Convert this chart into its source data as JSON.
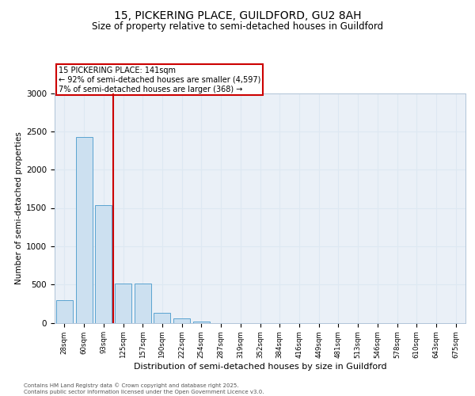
{
  "title1": "15, PICKERING PLACE, GUILDFORD, GU2 8AH",
  "title2": "Size of property relative to semi-detached houses in Guildford",
  "xlabel": "Distribution of semi-detached houses by size in Guildford",
  "ylabel": "Number of semi-detached properties",
  "categories": [
    "28sqm",
    "60sqm",
    "93sqm",
    "125sqm",
    "157sqm",
    "190sqm",
    "222sqm",
    "254sqm",
    "287sqm",
    "319sqm",
    "352sqm",
    "384sqm",
    "416sqm",
    "449sqm",
    "481sqm",
    "513sqm",
    "546sqm",
    "578sqm",
    "610sqm",
    "643sqm",
    "675sqm"
  ],
  "values": [
    300,
    2430,
    1540,
    510,
    510,
    130,
    55,
    20,
    0,
    0,
    0,
    0,
    0,
    0,
    0,
    0,
    0,
    0,
    0,
    0,
    0
  ],
  "bar_color": "#cce0f0",
  "bar_edge_color": "#5ba3d0",
  "grid_color": "#dde8f2",
  "background_color": "#eaf0f7",
  "vline_color": "#cc0000",
  "vline_pos": 2.5,
  "annotation_line1": "15 PICKERING PLACE: 141sqm",
  "annotation_line2": "← 92% of semi-detached houses are smaller (4,597)",
  "annotation_line3": "7% of semi-detached houses are larger (368) →",
  "annotation_box_color": "#cc0000",
  "ylim": [
    0,
    3000
  ],
  "yticks": [
    0,
    500,
    1000,
    1500,
    2000,
    2500,
    3000
  ],
  "footer1": "Contains HM Land Registry data © Crown copyright and database right 2025.",
  "footer2": "Contains public sector information licensed under the Open Government Licence v3.0."
}
